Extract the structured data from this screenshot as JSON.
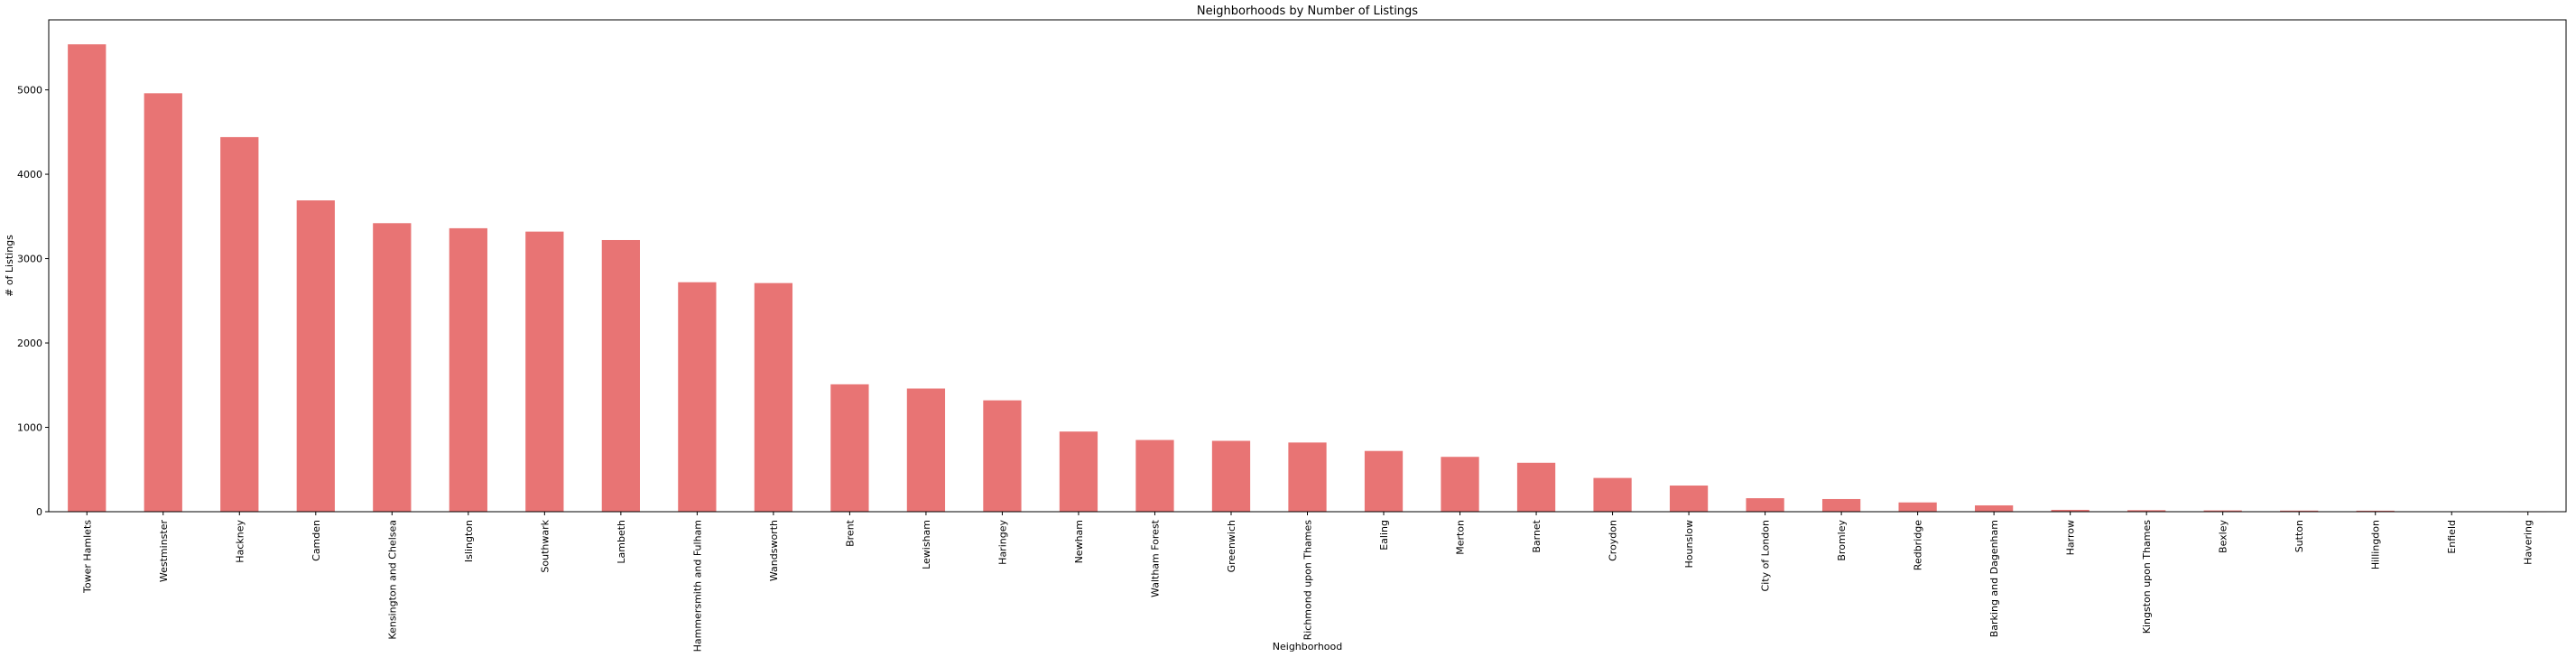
{
  "chart_data": {
    "type": "bar",
    "title": "Neighborhoods by Number of Listings",
    "xlabel": "Neighborhood",
    "ylabel": "# of Listings",
    "ylim": [
      0,
      5830
    ],
    "yticks": [
      0,
      1000,
      2000,
      3000,
      4000,
      5000
    ],
    "grid": false,
    "bar_color": "#e87474",
    "categories": [
      "Tower Hamlets",
      "Westminster",
      "Hackney",
      "Camden",
      "Kensington and Chelsea",
      "Islington",
      "Southwark",
      "Lambeth",
      "Hammersmith and Fulham",
      "Wandsworth",
      "Brent",
      "Lewisham",
      "Haringey",
      "Newham",
      "Waltham Forest",
      "Greenwich",
      "Richmond upon Thames",
      "Ealing",
      "Merton",
      "Barnet",
      "Croydon",
      "Hounslow",
      "City of London",
      "Bromley",
      "Redbridge",
      "Barking and Dagenham",
      "Harrow",
      "Kingston upon Thames",
      "Bexley",
      "Sutton",
      "Hillingdon",
      "Enfield",
      "Havering"
    ],
    "values": [
      5540,
      4960,
      4440,
      3690,
      3420,
      3360,
      3320,
      3220,
      2720,
      2710,
      1510,
      1460,
      1320,
      950,
      850,
      840,
      820,
      720,
      650,
      580,
      400,
      310,
      160,
      150,
      110,
      75,
      22,
      18,
      15,
      13,
      12,
      5,
      3
    ]
  }
}
